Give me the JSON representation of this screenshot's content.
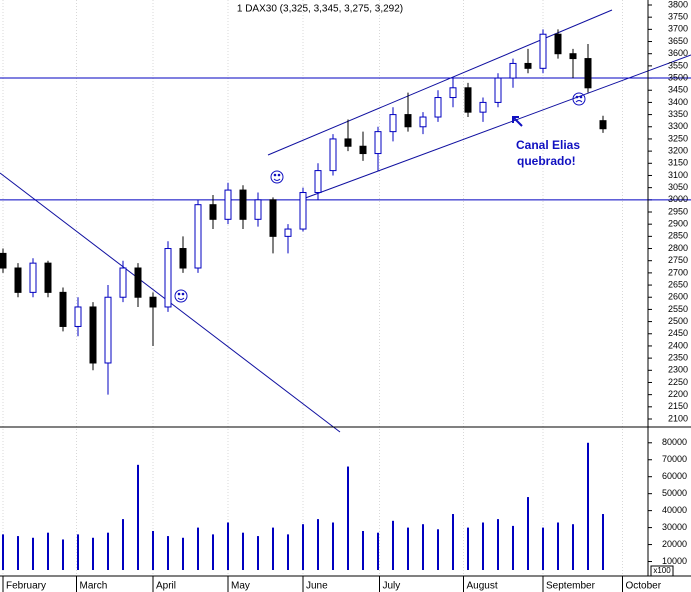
{
  "chart_data": [
    {
      "type": "candlestick",
      "title": "1 DAX30 (3,325, 3,345, 3,275, 3,292)",
      "open": [
        2780,
        2720,
        2620,
        2740,
        2620,
        2480,
        2560,
        2330,
        2600,
        2720,
        2600,
        2560,
        2800,
        2720,
        2980,
        2920,
        3040,
        2920,
        3000,
        2850,
        2880,
        3030,
        3120,
        3250,
        3220,
        3190,
        3280,
        3350,
        3300,
        3340,
        3420,
        3460,
        3360,
        3400,
        3500,
        3560,
        3540,
        3680,
        3600,
        3580,
        3325
      ],
      "high": [
        2800,
        2740,
        2760,
        2750,
        2640,
        2600,
        2580,
        2650,
        2750,
        2740,
        2620,
        2830,
        2850,
        3000,
        3020,
        3070,
        3060,
        3030,
        3010,
        2900,
        3050,
        3150,
        3270,
        3330,
        3280,
        3300,
        3380,
        3440,
        3360,
        3450,
        3500,
        3480,
        3420,
        3520,
        3580,
        3620,
        3700,
        3700,
        3620,
        3640,
        3345
      ],
      "low": [
        2700,
        2600,
        2600,
        2600,
        2460,
        2440,
        2300,
        2200,
        2580,
        2560,
        2400,
        2540,
        2700,
        2700,
        2880,
        2900,
        2880,
        2890,
        2780,
        2780,
        2870,
        3000,
        3100,
        3200,
        3160,
        3120,
        3240,
        3280,
        3270,
        3320,
        3380,
        3340,
        3320,
        3380,
        3460,
        3520,
        3520,
        3580,
        3500,
        3440,
        3275
      ],
      "close": [
        2720,
        2620,
        2740,
        2620,
        2480,
        2560,
        2330,
        2600,
        2720,
        2600,
        2560,
        2800,
        2720,
        2980,
        2920,
        3040,
        2920,
        3000,
        2850,
        2880,
        3030,
        3120,
        3250,
        3220,
        3190,
        3280,
        3350,
        3300,
        3340,
        3420,
        3460,
        3360,
        3400,
        3500,
        3560,
        3540,
        3680,
        3600,
        3580,
        3460,
        3292
      ],
      "up_color": "#0000c0",
      "down_color": "#000000",
      "levels": [
        3500,
        3000
      ],
      "level_color": "#0000c0",
      "ylim": [
        2100,
        3800
      ],
      "yticks": [
        2100,
        2150,
        2200,
        2250,
        2300,
        2350,
        2400,
        2450,
        2500,
        2550,
        2600,
        2650,
        2700,
        2750,
        2800,
        2850,
        2900,
        2950,
        3000,
        3050,
        3100,
        3150,
        3200,
        3250,
        3300,
        3350,
        3400,
        3450,
        3500,
        3550,
        3600,
        3650,
        3700,
        3750,
        3800
      ],
      "xlim": [
        -0.2,
        43
      ],
      "xticks": [
        {
          "value": 0,
          "label": "February"
        },
        {
          "value": 4.9,
          "label": "March"
        },
        {
          "value": 10,
          "label": "April"
        },
        {
          "value": 15,
          "label": "May"
        },
        {
          "value": 20,
          "label": "June"
        },
        {
          "value": 25.1,
          "label": "July"
        },
        {
          "value": 30.7,
          "label": "August"
        },
        {
          "value": 36,
          "label": "September"
        },
        {
          "value": 41.3,
          "label": "October"
        }
      ],
      "annotations": [
        "Canal Elias",
        "quebrado!"
      ]
    },
    {
      "type": "bar",
      "y_label": "x100",
      "color": "#0000c0",
      "values": [
        26000,
        25000,
        24000,
        27000,
        23000,
        26000,
        24000,
        27000,
        35000,
        67000,
        28000,
        25000,
        24000,
        30000,
        26000,
        33000,
        27000,
        25000,
        30000,
        26000,
        32000,
        35000,
        33000,
        66000,
        28000,
        27000,
        34000,
        30000,
        32000,
        29000,
        38000,
        30000,
        33000,
        35000,
        31000,
        48000,
        30000,
        33000,
        32000,
        80000,
        38000
      ],
      "ylim": [
        5000,
        84000
      ],
      "yticks": [
        10000,
        20000,
        30000,
        40000,
        50000,
        60000,
        70000,
        80000
      ]
    }
  ]
}
